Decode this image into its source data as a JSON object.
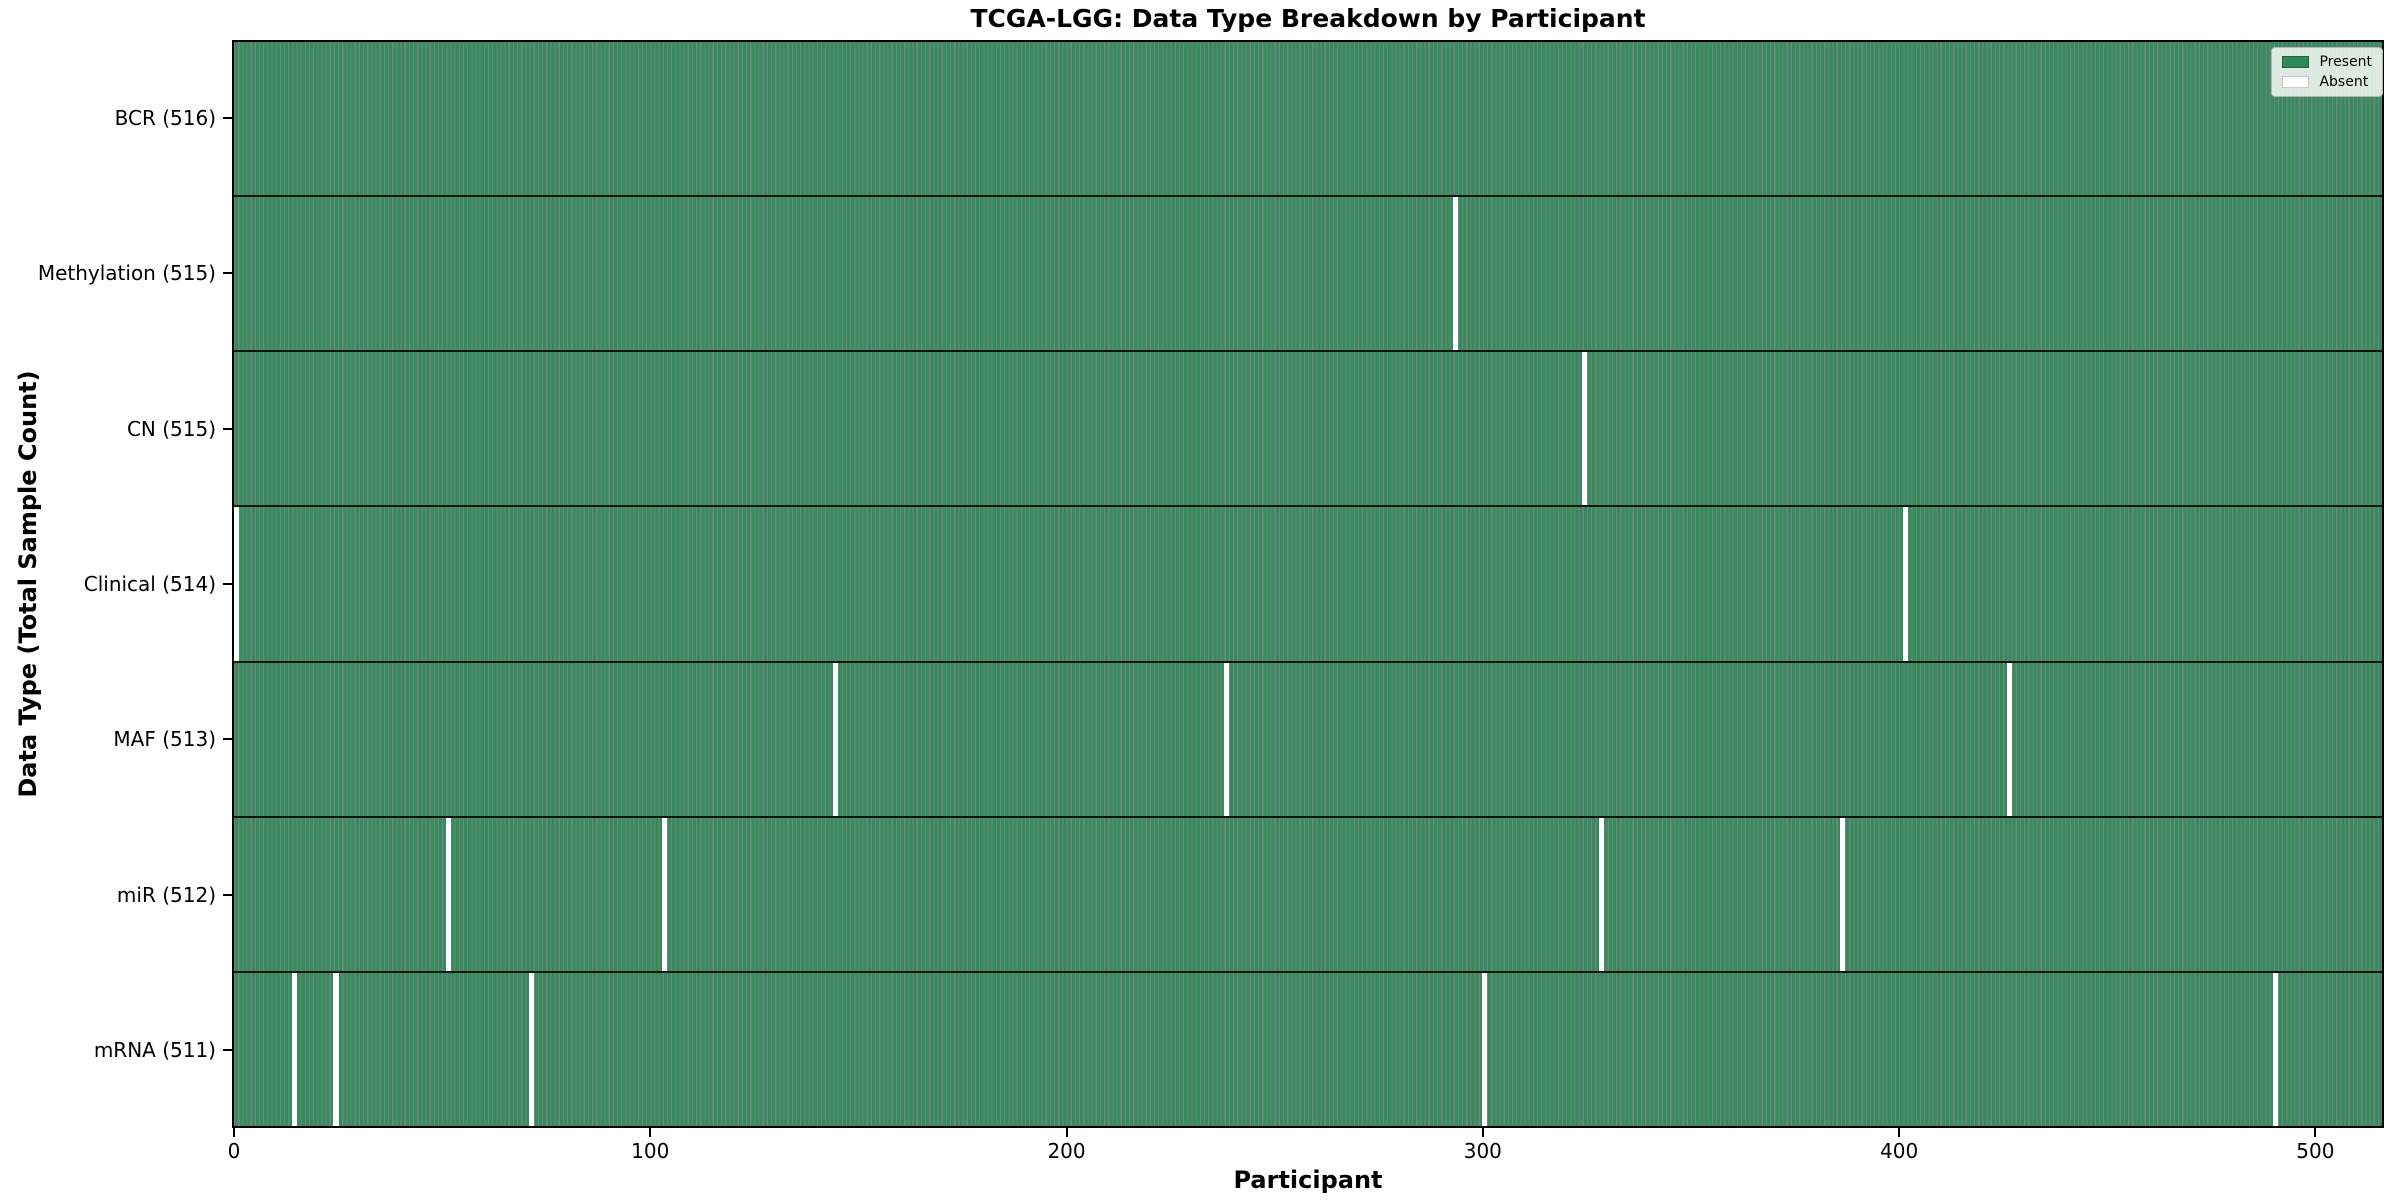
{
  "title": "TCGA-LGG: Data Type Breakdown by Participant",
  "legend": {
    "present_label": "Present",
    "absent_label": "Absent"
  },
  "chart_data": {
    "type": "heatmap",
    "title": "TCGA-LGG: Data Type Breakdown by Participant",
    "xlabel": "Participant",
    "ylabel": "Data Type (Total Sample Count)",
    "x_range": [
      0,
      516
    ],
    "x_ticks": [
      0,
      100,
      200,
      300,
      400,
      500
    ],
    "n_participants": 516,
    "grid": false,
    "legend_position": "upper right",
    "legend_entries": [
      {
        "label": "Present",
        "color": "#2e8b57"
      },
      {
        "label": "Absent",
        "color": "#ffffff"
      }
    ],
    "colors": {
      "present": "#2f8e5b",
      "present_edge": "rgba(0,0,0,0.5)",
      "absent": "#ffffff"
    },
    "rows": [
      {
        "data_type": "BCR",
        "label": "BCR (516)",
        "total": 516,
        "absent_participants": []
      },
      {
        "data_type": "Methylation",
        "label": "Methylation (515)",
        "total": 515,
        "absent_participants": [
          293
        ]
      },
      {
        "data_type": "CN",
        "label": "CN (515)",
        "total": 515,
        "absent_participants": [
          324
        ]
      },
      {
        "data_type": "Clinical",
        "label": "Clinical (514)",
        "total": 514,
        "absent_participants": [
          0,
          401
        ]
      },
      {
        "data_type": "MAF",
        "label": "MAF (513)",
        "total": 513,
        "absent_participants": [
          144,
          238,
          426
        ]
      },
      {
        "data_type": "miR",
        "label": "miR (512)",
        "total": 512,
        "absent_participants": [
          51,
          103,
          328,
          386
        ]
      },
      {
        "data_type": "mRNA",
        "label": "mRNA (511)",
        "total": 511,
        "absent_participants": [
          14,
          24,
          71,
          300,
          490
        ]
      }
    ]
  }
}
